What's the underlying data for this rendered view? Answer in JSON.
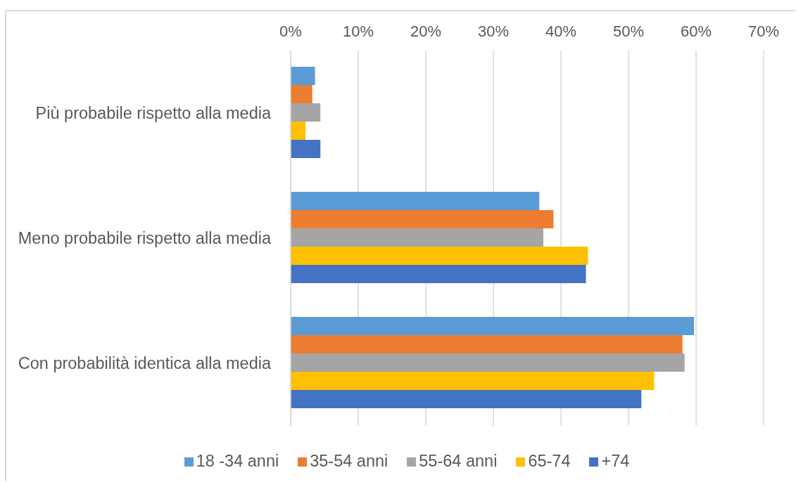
{
  "chart_data": {
    "type": "bar",
    "orientation": "horizontal",
    "categories": [
      "Più probabile rispetto alla media",
      "Meno probabile rispetto alla media",
      "Con probabilità identica alla media"
    ],
    "series": [
      {
        "name": "18 -34 anni",
        "color": "#5b9bd5",
        "values": [
          3.6,
          36.8,
          59.7
        ]
      },
      {
        "name": "35-54 anni",
        "color": "#ed7d31",
        "values": [
          3.2,
          38.9,
          58.0
        ]
      },
      {
        "name": "55-64 anni",
        "color": "#a5a5a5",
        "values": [
          4.4,
          37.4,
          58.3
        ]
      },
      {
        "name": "65-74",
        "color": "#ffc000",
        "values": [
          2.2,
          44.0,
          53.8
        ]
      },
      {
        "name": "+74",
        "color": "#4472c4",
        "values": [
          4.4,
          43.7,
          51.9
        ]
      }
    ],
    "xlim": [
      0,
      70
    ],
    "xticks": [
      {
        "value": 0,
        "label": "0%"
      },
      {
        "value": 10,
        "label": "10%"
      },
      {
        "value": 20,
        "label": "20%"
      },
      {
        "value": 30,
        "label": "30%"
      },
      {
        "value": 40,
        "label": "40%"
      },
      {
        "value": 50,
        "label": "50%"
      },
      {
        "value": 60,
        "label": "60%"
      },
      {
        "value": 70,
        "label": "70%"
      }
    ],
    "grid": "x",
    "legend": "bottom"
  }
}
